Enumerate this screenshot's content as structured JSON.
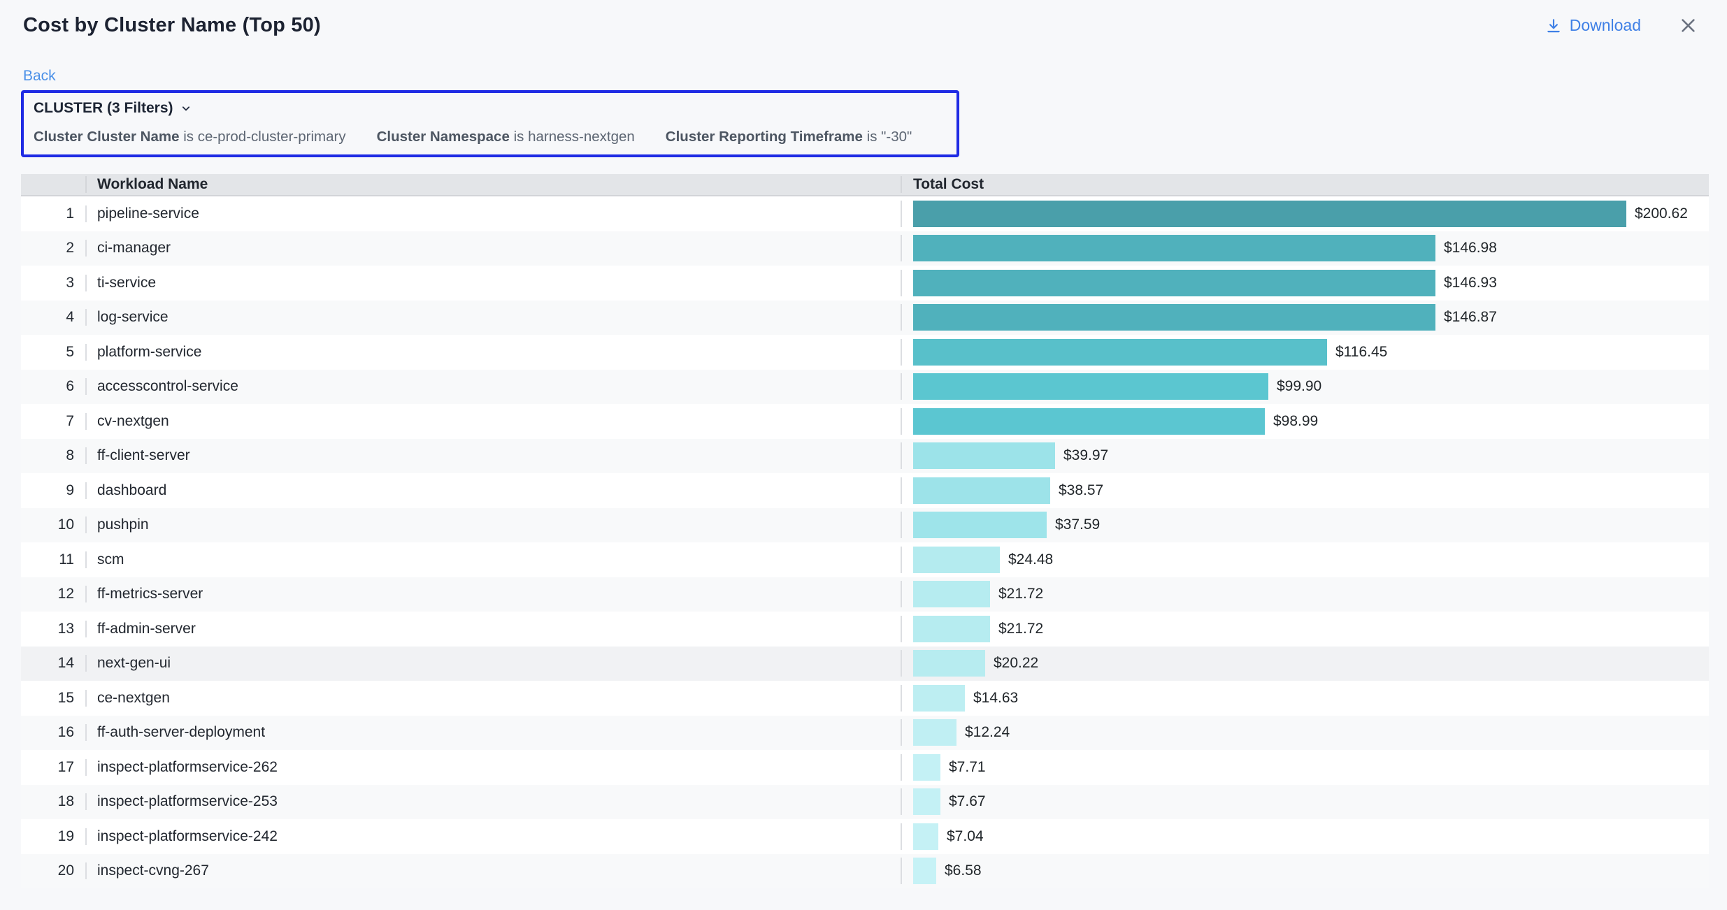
{
  "header": {
    "title": "Cost by Cluster Name (Top 50)",
    "download_label": "Download",
    "accent_blue": "#3f80e6"
  },
  "toolbar": {
    "back_label": "Back"
  },
  "filter_panel": {
    "title": "CLUSTER (3 Filters)",
    "border_color": "#1f2be4",
    "filters": [
      {
        "field": "Cluster Cluster Name",
        "op": "is",
        "value": "ce-prod-cluster-primary"
      },
      {
        "field": "Cluster Namespace",
        "op": "is",
        "value": "harness-nextgen"
      },
      {
        "field": "Cluster Reporting Timeframe",
        "op": "is",
        "value": "\"-30\""
      }
    ]
  },
  "table": {
    "columns": {
      "workload": "Workload Name",
      "cost": "Total Cost"
    },
    "rows": [
      {
        "rank": "1",
        "name": "pipeline-service",
        "cost": "$200.62",
        "value": 200.62,
        "color": "#4a9faa",
        "highlighted": false
      },
      {
        "rank": "2",
        "name": "ci-manager",
        "cost": "$146.98",
        "value": 146.98,
        "color": "#50b1bc",
        "highlighted": false
      },
      {
        "rank": "3",
        "name": "ti-service",
        "cost": "$146.93",
        "value": 146.93,
        "color": "#50b1bc",
        "highlighted": false
      },
      {
        "rank": "4",
        "name": "log-service",
        "cost": "$146.87",
        "value": 146.87,
        "color": "#50b1bc",
        "highlighted": false
      },
      {
        "rank": "5",
        "name": "platform-service",
        "cost": "$116.45",
        "value": 116.45,
        "color": "#58c0ca",
        "highlighted": false
      },
      {
        "rank": "6",
        "name": "accesscontrol-service",
        "cost": "$99.90",
        "value": 99.9,
        "color": "#5bc6d0",
        "highlighted": false
      },
      {
        "rank": "7",
        "name": "cv-nextgen",
        "cost": "$98.99",
        "value": 98.99,
        "color": "#5bc6d1",
        "highlighted": false
      },
      {
        "rank": "8",
        "name": "ff-client-server",
        "cost": "$39.97",
        "value": 39.97,
        "color": "#9ce3e9",
        "highlighted": false
      },
      {
        "rank": "9",
        "name": "dashboard",
        "cost": "$38.57",
        "value": 38.57,
        "color": "#9de3e9",
        "highlighted": false
      },
      {
        "rank": "10",
        "name": "pushpin",
        "cost": "$37.59",
        "value": 37.59,
        "color": "#9ee4ea",
        "highlighted": false
      },
      {
        "rank": "11",
        "name": "scm",
        "cost": "$24.48",
        "value": 24.48,
        "color": "#b4ebef",
        "highlighted": false
      },
      {
        "rank": "12",
        "name": "ff-metrics-server",
        "cost": "$21.72",
        "value": 21.72,
        "color": "#b6ecf0",
        "highlighted": false
      },
      {
        "rank": "13",
        "name": "ff-admin-server",
        "cost": "$21.72",
        "value": 21.72,
        "color": "#b6ecf0",
        "highlighted": false
      },
      {
        "rank": "14",
        "name": "next-gen-ui",
        "cost": "$20.22",
        "value": 20.22,
        "color": "#b7ecf0",
        "highlighted": true
      },
      {
        "rank": "15",
        "name": "ce-nextgen",
        "cost": "$14.63",
        "value": 14.63,
        "color": "#bdeef2",
        "highlighted": false
      },
      {
        "rank": "16",
        "name": "ff-auth-server-deployment",
        "cost": "$12.24",
        "value": 12.24,
        "color": "#c0eff3",
        "highlighted": false
      },
      {
        "rank": "17",
        "name": "inspect-platformservice-262",
        "cost": "$7.71",
        "value": 7.71,
        "color": "#c4f1f5",
        "highlighted": false
      },
      {
        "rank": "18",
        "name": "inspect-platformservice-253",
        "cost": "$7.67",
        "value": 7.67,
        "color": "#c4f1f5",
        "highlighted": false
      },
      {
        "rank": "19",
        "name": "inspect-platformservice-242",
        "cost": "$7.04",
        "value": 7.04,
        "color": "#c5f1f5",
        "highlighted": false
      },
      {
        "rank": "20",
        "name": "inspect-cvng-267",
        "cost": "$6.58",
        "value": 6.58,
        "color": "#c6f2f6",
        "highlighted": false
      }
    ]
  },
  "chart_data": {
    "type": "bar",
    "orientation": "horizontal",
    "title": "Cost by Cluster Name (Top 50)",
    "xlabel": "Total Cost",
    "ylabel": "Workload Name",
    "xlim": [
      0,
      200.62
    ],
    "categories": [
      "pipeline-service",
      "ci-manager",
      "ti-service",
      "log-service",
      "platform-service",
      "accesscontrol-service",
      "cv-nextgen",
      "ff-client-server",
      "dashboard",
      "pushpin",
      "scm",
      "ff-metrics-server",
      "ff-admin-server",
      "next-gen-ui",
      "ce-nextgen",
      "ff-auth-server-deployment",
      "inspect-platformservice-262",
      "inspect-platformservice-253",
      "inspect-platformservice-242",
      "inspect-cvng-267"
    ],
    "values": [
      200.62,
      146.98,
      146.93,
      146.87,
      116.45,
      99.9,
      98.99,
      39.97,
      38.57,
      37.59,
      24.48,
      21.72,
      21.72,
      20.22,
      14.63,
      12.24,
      7.71,
      7.67,
      7.04,
      6.58
    ],
    "value_labels": [
      "$200.62",
      "$146.98",
      "$146.93",
      "$146.87",
      "$116.45",
      "$99.90",
      "$98.99",
      "$39.97",
      "$38.57",
      "$37.59",
      "$24.48",
      "$21.72",
      "$21.72",
      "$20.22",
      "$14.63",
      "$12.24",
      "$7.71",
      "$7.67",
      "$7.04",
      "$6.58"
    ],
    "bar_palette": "sequential-teal (darker = higher cost)",
    "legend": "none",
    "grid": "off"
  }
}
